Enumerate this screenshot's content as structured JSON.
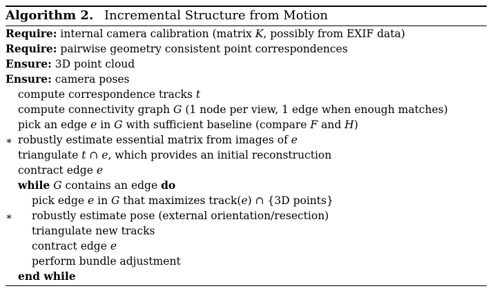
{
  "caption": {
    "label": "Algorithm 2.",
    "title": "Incremental Structure from Motion"
  },
  "lines": [
    {
      "indent": 0,
      "star": "",
      "segments": [
        {
          "t": "Require:",
          "style": "kw"
        },
        {
          "t": " internal camera calibration (matrix ",
          "style": ""
        },
        {
          "t": "K",
          "style": "m"
        },
        {
          "t": ", possibly from EXIF data)",
          "style": ""
        }
      ]
    },
    {
      "indent": 0,
      "star": "",
      "segments": [
        {
          "t": "Require:",
          "style": "kw"
        },
        {
          "t": " pairwise geometry consistent point correspondences",
          "style": ""
        }
      ]
    },
    {
      "indent": 0,
      "star": "",
      "segments": [
        {
          "t": "Ensure:",
          "style": "kw"
        },
        {
          "t": " 3D point cloud",
          "style": ""
        }
      ]
    },
    {
      "indent": 0,
      "star": "",
      "segments": [
        {
          "t": "Ensure:",
          "style": "kw"
        },
        {
          "t": " camera poses",
          "style": ""
        }
      ]
    },
    {
      "indent": 1,
      "star": "",
      "segments": [
        {
          "t": "compute correspondence tracks ",
          "style": ""
        },
        {
          "t": "t",
          "style": "m"
        }
      ]
    },
    {
      "indent": 1,
      "star": "",
      "segments": [
        {
          "t": "compute connectivity graph ",
          "style": ""
        },
        {
          "t": "G",
          "style": "m"
        },
        {
          "t": " (1 node per view, 1 edge when enough matches)",
          "style": ""
        }
      ]
    },
    {
      "indent": 1,
      "star": "",
      "segments": [
        {
          "t": "pick an edge ",
          "style": ""
        },
        {
          "t": "e",
          "style": "m"
        },
        {
          "t": " in ",
          "style": ""
        },
        {
          "t": "G",
          "style": "m"
        },
        {
          "t": " with sufficient baseline (compare ",
          "style": ""
        },
        {
          "t": "F",
          "style": "m"
        },
        {
          "t": " and ",
          "style": ""
        },
        {
          "t": "H",
          "style": "m"
        },
        {
          "t": ")",
          "style": ""
        }
      ]
    },
    {
      "indent": 1,
      "star": "∗",
      "segments": [
        {
          "t": "robustly estimate essential matrix from images of ",
          "style": ""
        },
        {
          "t": "e",
          "style": "m"
        }
      ]
    },
    {
      "indent": 1,
      "star": "",
      "segments": [
        {
          "t": "triangulate ",
          "style": ""
        },
        {
          "t": "t",
          "style": "m"
        },
        {
          "t": " ∩ ",
          "style": ""
        },
        {
          "t": "e",
          "style": "m"
        },
        {
          "t": ", which provides an initial reconstruction",
          "style": ""
        }
      ]
    },
    {
      "indent": 1,
      "star": "",
      "segments": [
        {
          "t": "contract edge ",
          "style": ""
        },
        {
          "t": "e",
          "style": "m"
        }
      ]
    },
    {
      "indent": 1,
      "star": "",
      "segments": [
        {
          "t": "while",
          "style": "kw"
        },
        {
          "t": " ",
          "style": ""
        },
        {
          "t": "G",
          "style": "m"
        },
        {
          "t": " contains an edge ",
          "style": ""
        },
        {
          "t": "do",
          "style": "kw"
        }
      ]
    },
    {
      "indent": 2,
      "star": "",
      "segments": [
        {
          "t": "pick edge ",
          "style": ""
        },
        {
          "t": "e",
          "style": "m"
        },
        {
          "t": " in ",
          "style": ""
        },
        {
          "t": "G",
          "style": "m"
        },
        {
          "t": " that maximizes track(",
          "style": ""
        },
        {
          "t": "e",
          "style": "m"
        },
        {
          "t": ") ∩ {3D points}",
          "style": ""
        }
      ]
    },
    {
      "indent": 2,
      "star": "∗",
      "segments": [
        {
          "t": "robustly estimate pose (external orientation/resection)",
          "style": ""
        }
      ]
    },
    {
      "indent": 2,
      "star": "",
      "segments": [
        {
          "t": "triangulate new tracks",
          "style": ""
        }
      ]
    },
    {
      "indent": 2,
      "star": "",
      "segments": [
        {
          "t": "contract edge ",
          "style": ""
        },
        {
          "t": "e",
          "style": "m"
        }
      ]
    },
    {
      "indent": 2,
      "star": "",
      "segments": [
        {
          "t": "perform bundle adjustment",
          "style": ""
        }
      ]
    },
    {
      "indent": 1,
      "star": "",
      "segments": [
        {
          "t": "end while",
          "style": "kw"
        }
      ]
    }
  ]
}
